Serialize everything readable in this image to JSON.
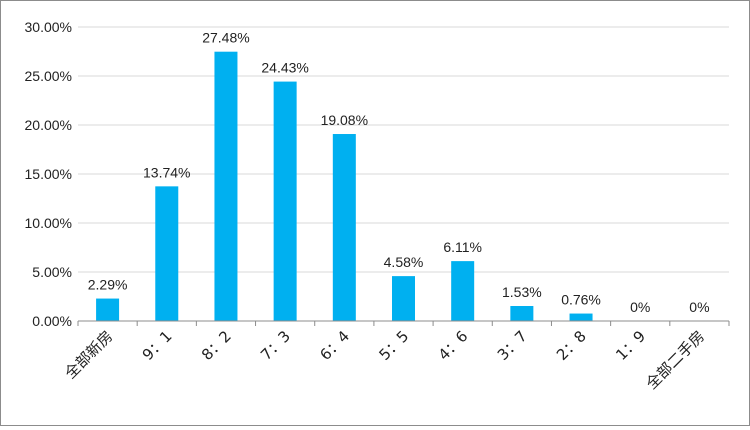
{
  "chart_data": {
    "type": "bar",
    "title": "",
    "xlabel": "",
    "ylabel": "",
    "categories": [
      "全部新房",
      "9：1",
      "8：2",
      "7：3",
      "6：4",
      "5：5",
      "4：6",
      "3：7",
      "2：8",
      "1：9",
      "全部二手房"
    ],
    "values": [
      2.29,
      13.74,
      27.48,
      24.43,
      19.08,
      4.58,
      6.11,
      1.53,
      0.76,
      0,
      0
    ],
    "data_labels": [
      "2.29%",
      "13.74%",
      "27.48%",
      "24.43%",
      "19.08%",
      "4.58%",
      "6.11%",
      "1.53%",
      "0.76%",
      "0%",
      "0%"
    ],
    "ylim": [
      0,
      30
    ],
    "yticks": [
      0,
      5,
      10,
      15,
      20,
      25,
      30
    ],
    "ytick_labels": [
      "0.00%",
      "5.00%",
      "10.00%",
      "15.00%",
      "20.00%",
      "25.00%",
      "30.00%"
    ],
    "grid": true,
    "legend": "none",
    "colors": {
      "bar": "#00b0f0",
      "grid": "#d9d9d9",
      "axis": "#8c8c8c"
    }
  }
}
